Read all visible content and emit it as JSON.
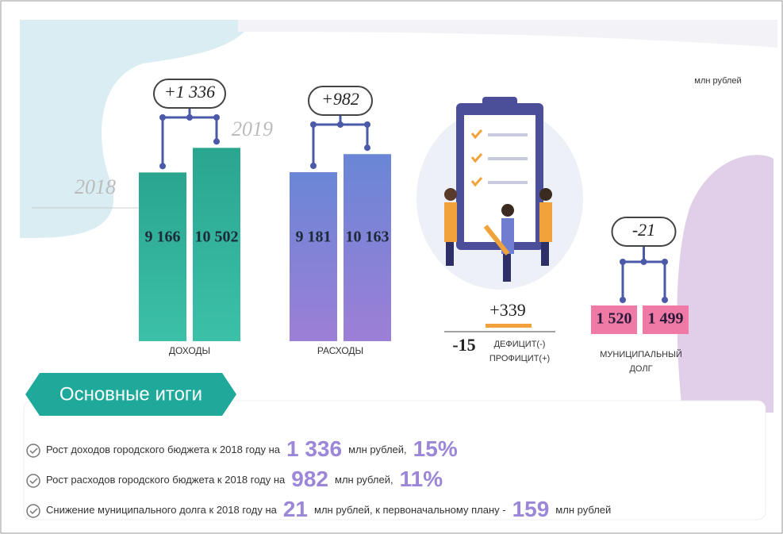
{
  "units": "млн рублей",
  "years": [
    "2018",
    "2019"
  ],
  "income": {
    "label": "ДОХОДЫ",
    "change": "+1 336",
    "values": [
      9166,
      10502
    ],
    "value_labels": [
      "9 166",
      "10 502"
    ]
  },
  "expenses": {
    "label": "РАСХОДЫ",
    "change": "+982",
    "values": [
      9181,
      10163
    ],
    "value_labels": [
      "9 181",
      "10 163"
    ]
  },
  "balance": {
    "label": [
      "ДЕФИЦИТ(-)",
      "ПРОФИЦИТ(+)"
    ],
    "values": [
      "-15",
      "+339"
    ]
  },
  "debt": {
    "label": [
      "МУНИЦИПАЛЬНЫЙ",
      "ДОЛГ"
    ],
    "change": "-21",
    "values": [
      "1 520",
      "1 499"
    ]
  },
  "summary": {
    "title": "Основные итоги",
    "items": [
      [
        "Рост доходов городского бюджета к 2018 году на",
        "1 336",
        "млн рублей,",
        "15%"
      ],
      [
        "Рост расходов городского бюджета к 2018 году на",
        "982",
        "млн рублей,",
        "11%"
      ],
      [
        "Снижение муниципального долга к 2018 году на",
        "21",
        "млн рублей, к первоначальному плану -",
        "159",
        "млн рублей"
      ]
    ]
  }
}
